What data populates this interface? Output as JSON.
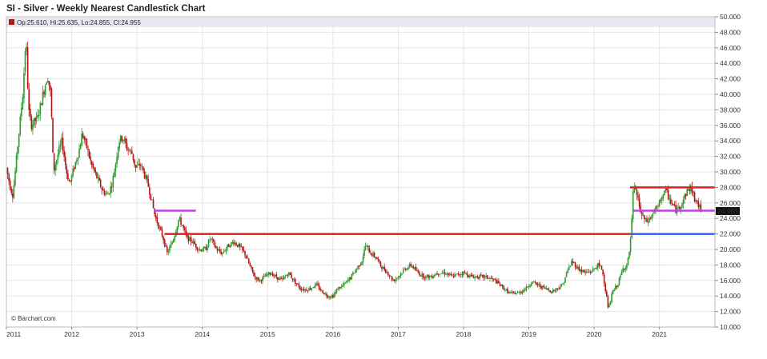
{
  "title": "SI - Silver - Weekly Nearest Candlestick Chart",
  "ohlc_readout": "Op:25.610, Hi:25.635, Lo:24.855, Cl:24.955",
  "credit": "© Barchart.com",
  "colors": {
    "up_candle": "#2e9b2e",
    "down_candle": "#b01818",
    "resistance_line": "#e02020",
    "mid_line": "#c040e0",
    "support_line": "#3060ff",
    "price_box": "#111111",
    "grid": "#e6e6e6",
    "header_band": "#e8e8f4"
  },
  "chart_data": {
    "type": "candlestick",
    "title": "SI - Silver - Weekly Nearest Candlestick Chart",
    "x_start": 2011.0,
    "x_end": 2021.85,
    "ylim": [
      10,
      50
    ],
    "x_tick_labels": [
      "2011",
      "2012",
      "2013",
      "2014",
      "2015",
      "2016",
      "2017",
      "2018",
      "2019",
      "2020",
      "2021"
    ],
    "x_tick_values": [
      2011,
      2012,
      2013,
      2014,
      2015,
      2016,
      2017,
      2018,
      2019,
      2020,
      2021
    ],
    "y_tick_labels": [
      "10.000",
      "12.000",
      "14.000",
      "16.000",
      "18.000",
      "20.000",
      "22.000",
      "24.000",
      "26.000",
      "28.000",
      "30.000",
      "32.000",
      "34.000",
      "36.000",
      "38.000",
      "40.000",
      "42.000",
      "44.000",
      "46.000",
      "48.000",
      "50.000"
    ],
    "y_tick_values": [
      10,
      12,
      14,
      16,
      18,
      20,
      22,
      24,
      26,
      28,
      30,
      32,
      34,
      36,
      38,
      40,
      42,
      44,
      46,
      48,
      50
    ],
    "last_price_label": "24.955",
    "last_price": 24.955,
    "price_path": [
      [
        2011.0,
        30.5
      ],
      [
        2011.06,
        28.0
      ],
      [
        2011.1,
        27.0
      ],
      [
        2011.18,
        34.0
      ],
      [
        2011.25,
        40.0
      ],
      [
        2011.3,
        47.5
      ],
      [
        2011.34,
        38.0
      ],
      [
        2011.38,
        36.0
      ],
      [
        2011.48,
        37.0
      ],
      [
        2011.56,
        40.0
      ],
      [
        2011.63,
        42.5
      ],
      [
        2011.68,
        40.0
      ],
      [
        2011.72,
        30.0
      ],
      [
        2011.78,
        32.0
      ],
      [
        2011.85,
        34.0
      ],
      [
        2011.92,
        30.0
      ],
      [
        2011.97,
        28.5
      ],
      [
        2012.05,
        31.0
      ],
      [
        2012.12,
        33.0
      ],
      [
        2012.16,
        35.0
      ],
      [
        2012.22,
        33.5
      ],
      [
        2012.3,
        31.0
      ],
      [
        2012.4,
        29.0
      ],
      [
        2012.48,
        27.5
      ],
      [
        2012.55,
        27.0
      ],
      [
        2012.62,
        28.5
      ],
      [
        2012.68,
        31.5
      ],
      [
        2012.72,
        34.0
      ],
      [
        2012.78,
        34.5
      ],
      [
        2012.85,
        33.0
      ],
      [
        2012.92,
        32.5
      ],
      [
        2012.98,
        30.5
      ],
      [
        2013.05,
        31.0
      ],
      [
        2013.12,
        29.5
      ],
      [
        2013.18,
        28.0
      ],
      [
        2013.22,
        26.5
      ],
      [
        2013.27,
        24.5
      ],
      [
        2013.33,
        23.0
      ],
      [
        2013.4,
        21.5
      ],
      [
        2013.46,
        19.5
      ],
      [
        2013.52,
        20.5
      ],
      [
        2013.58,
        22.0
      ],
      [
        2013.64,
        24.0
      ],
      [
        2013.7,
        23.0
      ],
      [
        2013.76,
        21.5
      ],
      [
        2013.85,
        21.0
      ],
      [
        2013.95,
        20.0
      ],
      [
        2014.05,
        20.0
      ],
      [
        2014.12,
        21.5
      ],
      [
        2014.22,
        20.0
      ],
      [
        2014.3,
        19.5
      ],
      [
        2014.4,
        20.5
      ],
      [
        2014.48,
        21.0
      ],
      [
        2014.55,
        20.5
      ],
      [
        2014.65,
        19.5
      ],
      [
        2014.72,
        18.0
      ],
      [
        2014.8,
        16.5
      ],
      [
        2014.88,
        16.0
      ],
      [
        2014.96,
        16.5
      ],
      [
        2015.05,
        17.0
      ],
      [
        2015.12,
        16.5
      ],
      [
        2015.22,
        16.0
      ],
      [
        2015.32,
        17.0
      ],
      [
        2015.4,
        16.0
      ],
      [
        2015.5,
        15.0
      ],
      [
        2015.58,
        14.8
      ],
      [
        2015.66,
        15.0
      ],
      [
        2015.74,
        15.5
      ],
      [
        2015.82,
        14.7
      ],
      [
        2015.92,
        14.0
      ],
      [
        2016.0,
        14.0
      ],
      [
        2016.08,
        15.0
      ],
      [
        2016.18,
        15.5
      ],
      [
        2016.28,
        16.5
      ],
      [
        2016.36,
        17.5
      ],
      [
        2016.44,
        18.5
      ],
      [
        2016.5,
        20.5
      ],
      [
        2016.58,
        19.5
      ],
      [
        2016.66,
        19.0
      ],
      [
        2016.74,
        17.8
      ],
      [
        2016.84,
        17.0
      ],
      [
        2016.92,
        16.0
      ],
      [
        2017.0,
        16.5
      ],
      [
        2017.1,
        17.5
      ],
      [
        2017.2,
        18.0
      ],
      [
        2017.3,
        17.0
      ],
      [
        2017.4,
        16.5
      ],
      [
        2017.5,
        16.5
      ],
      [
        2017.6,
        17.0
      ],
      [
        2017.72,
        17.0
      ],
      [
        2017.82,
        16.5
      ],
      [
        2017.92,
        16.8
      ],
      [
        2018.0,
        17.0
      ],
      [
        2018.12,
        16.5
      ],
      [
        2018.24,
        16.5
      ],
      [
        2018.36,
        16.4
      ],
      [
        2018.48,
        16.0
      ],
      [
        2018.56,
        15.4
      ],
      [
        2018.64,
        14.8
      ],
      [
        2018.72,
        14.3
      ],
      [
        2018.84,
        14.4
      ],
      [
        2018.96,
        15.0
      ],
      [
        2019.04,
        15.8
      ],
      [
        2019.12,
        15.5
      ],
      [
        2019.24,
        15.0
      ],
      [
        2019.36,
        14.6
      ],
      [
        2019.44,
        15.0
      ],
      [
        2019.52,
        15.5
      ],
      [
        2019.58,
        17.0
      ],
      [
        2019.66,
        18.5
      ],
      [
        2019.76,
        17.5
      ],
      [
        2019.86,
        17.0
      ],
      [
        2019.96,
        17.2
      ],
      [
        2020.06,
        18.0
      ],
      [
        2020.12,
        17.5
      ],
      [
        2020.17,
        15.0
      ],
      [
        2020.22,
        12.2
      ],
      [
        2020.28,
        14.5
      ],
      [
        2020.36,
        15.5
      ],
      [
        2020.44,
        17.5
      ],
      [
        2020.5,
        18.0
      ],
      [
        2020.54,
        19.5
      ],
      [
        2020.58,
        24.0
      ],
      [
        2020.6,
        28.0
      ],
      [
        2020.66,
        27.0
      ],
      [
        2020.72,
        24.5
      ],
      [
        2020.8,
        23.5
      ],
      [
        2020.86,
        24.0
      ],
      [
        2020.92,
        25.0
      ],
      [
        2020.98,
        25.5
      ],
      [
        2021.04,
        27.0
      ],
      [
        2021.1,
        27.5
      ],
      [
        2021.18,
        26.0
      ],
      [
        2021.26,
        25.0
      ],
      [
        2021.34,
        26.0
      ],
      [
        2021.42,
        27.5
      ],
      [
        2021.48,
        28.0
      ],
      [
        2021.54,
        26.5
      ],
      [
        2021.6,
        25.6
      ],
      [
        2021.65,
        24.96
      ]
    ],
    "lines": [
      {
        "name": "resistance",
        "y": 22.0,
        "x_from": 2013.42,
        "x_to": 2020.55,
        "color": "#e02020"
      },
      {
        "name": "resistance-upper",
        "y": 28.0,
        "x_from": 2020.55,
        "x_to": 2021.85,
        "color": "#e02020"
      },
      {
        "name": "level-25-left",
        "y": 25.0,
        "x_from": 2013.26,
        "x_to": 2013.9,
        "color": "#c040e0"
      },
      {
        "name": "level-25-right",
        "y": 25.0,
        "x_from": 2020.6,
        "x_to": 2021.85,
        "color": "#c040e0"
      },
      {
        "name": "support",
        "y": 22.0,
        "x_from": 2020.55,
        "x_to": 2021.85,
        "color": "#3060ff"
      }
    ],
    "grid": true
  }
}
